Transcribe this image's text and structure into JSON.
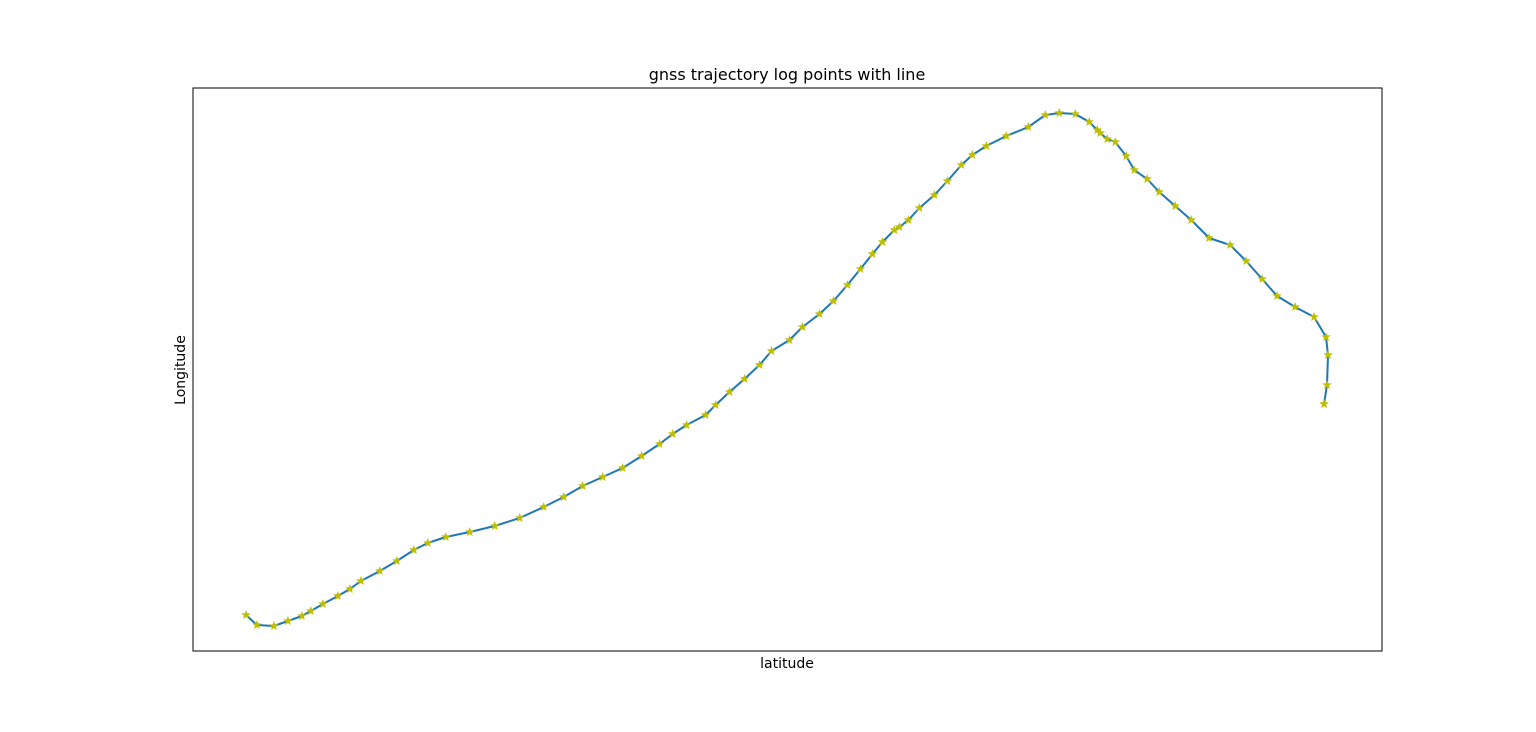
{
  "chart_data": {
    "type": "line",
    "title": "gnss trajectory log points with line",
    "xlabel": "latitude",
    "ylabel": "Longitude",
    "ticks_visible": false,
    "grid": false,
    "xlim": [
      0,
      1190
    ],
    "ylim": [
      0,
      563
    ],
    "series": [
      {
        "line_color": "#1f77b4",
        "marker": "star",
        "marker_color": "#bfbf00",
        "x": [
          53,
          64,
          81,
          95,
          109,
          118,
          130,
          145,
          157,
          168,
          187,
          204,
          221,
          235,
          253,
          277,
          302,
          327,
          351,
          371,
          390,
          410,
          430,
          449,
          467,
          480,
          494,
          513,
          523,
          537,
          552,
          567,
          579,
          597,
          610,
          627,
          641,
          655,
          668,
          680,
          690,
          702,
          707,
          716,
          727,
          742,
          755,
          769,
          780,
          794,
          814,
          836,
          853,
          867,
          883,
          897,
          905,
          908,
          915,
          923,
          934,
          942,
          955,
          967,
          983,
          999,
          1017,
          1038,
          1054,
          1070,
          1085,
          1103,
          1122,
          1134,
          1136,
          1135,
          1132,
          1132
        ],
        "y": [
          36,
          26,
          25,
          30,
          35,
          40,
          47,
          55,
          62,
          70,
          80,
          90,
          101,
          108,
          114,
          119,
          125,
          133,
          144,
          154,
          165,
          174,
          183,
          195,
          207,
          217,
          226,
          236,
          246,
          259,
          272,
          286,
          300,
          311,
          324,
          337,
          350,
          366,
          382,
          397,
          409,
          421,
          424,
          431,
          443,
          456,
          470,
          486,
          496,
          505,
          515,
          524,
          536,
          538,
          537,
          529,
          521,
          518,
          512,
          509,
          495,
          481,
          472,
          459,
          445,
          431,
          413,
          406,
          390,
          372,
          355,
          344,
          334,
          314,
          296,
          266,
          247,
          247
        ]
      }
    ]
  }
}
